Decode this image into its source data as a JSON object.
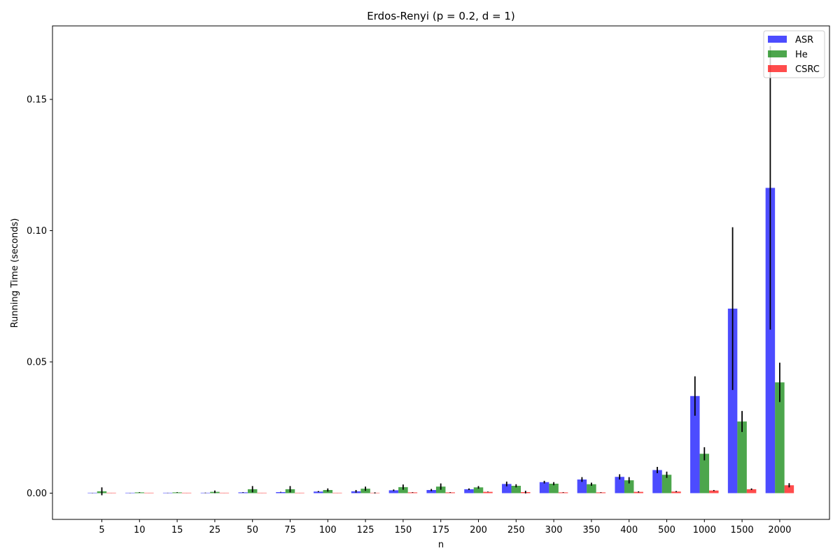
{
  "chart_data": {
    "type": "bar",
    "title": "Erdos-Renyi (p = 0.2, d = 1)",
    "xlabel": "n",
    "ylabel": "Running Time (seconds)",
    "categories": [
      "5",
      "10",
      "15",
      "25",
      "50",
      "75",
      "100",
      "125",
      "150",
      "175",
      "200",
      "250",
      "300",
      "350",
      "400",
      "500",
      "1000",
      "1500",
      "2000"
    ],
    "ylim": [
      -0.01,
      0.178
    ],
    "yticks": [
      0.0,
      0.05,
      0.1,
      0.15
    ],
    "ytick_labels": [
      "0.00",
      "0.05",
      "0.10",
      "0.15"
    ],
    "legend_position": "top-right",
    "grid": false,
    "series": [
      {
        "name": "ASR",
        "color": "#0000ff",
        "values": [
          5e-05,
          5e-05,
          0.0001,
          0.0001,
          0.0003,
          0.0004,
          0.0006,
          0.0007,
          0.0011,
          0.0012,
          0.0015,
          0.0035,
          0.0042,
          0.0052,
          0.0062,
          0.0088,
          0.037,
          0.0703,
          0.1163
        ],
        "errors": [
          5e-05,
          5e-05,
          5e-05,
          0.0001,
          0.0001,
          0.0001,
          0.0002,
          0.0005,
          0.0003,
          0.0004,
          0.0003,
          0.0009,
          0.0005,
          0.0009,
          0.001,
          0.0012,
          0.0075,
          0.031,
          0.054
        ]
      },
      {
        "name": "He",
        "color": "#008000",
        "values": [
          0.0007,
          0.0003,
          0.0003,
          0.0005,
          0.0015,
          0.0015,
          0.0012,
          0.0017,
          0.0023,
          0.0025,
          0.0022,
          0.0028,
          0.0036,
          0.0034,
          0.0049,
          0.007,
          0.015,
          0.0273,
          0.0422
        ],
        "errors": [
          0.0015,
          0.0001,
          0.0001,
          0.0005,
          0.0012,
          0.0012,
          0.0006,
          0.0008,
          0.001,
          0.0012,
          0.0005,
          0.0006,
          0.0006,
          0.0006,
          0.0012,
          0.0012,
          0.0025,
          0.004,
          0.0075
        ]
      },
      {
        "name": "CSRC",
        "color": "#ff0000",
        "values": [
          2e-05,
          2e-05,
          2e-05,
          2e-05,
          2e-05,
          2e-05,
          2e-05,
          0.0001,
          0.0003,
          0.0003,
          0.0005,
          0.0004,
          0.0003,
          0.0003,
          0.0005,
          0.0006,
          0.001,
          0.0015,
          0.003
        ],
        "errors": [
          1e-05,
          1e-05,
          1e-05,
          1e-05,
          1e-05,
          1e-05,
          1e-05,
          0.0002,
          0.0001,
          0.0001,
          0.0001,
          0.0005,
          0.0001,
          0.0001,
          0.0002,
          0.0002,
          0.0002,
          0.0003,
          0.0008
        ]
      }
    ]
  }
}
